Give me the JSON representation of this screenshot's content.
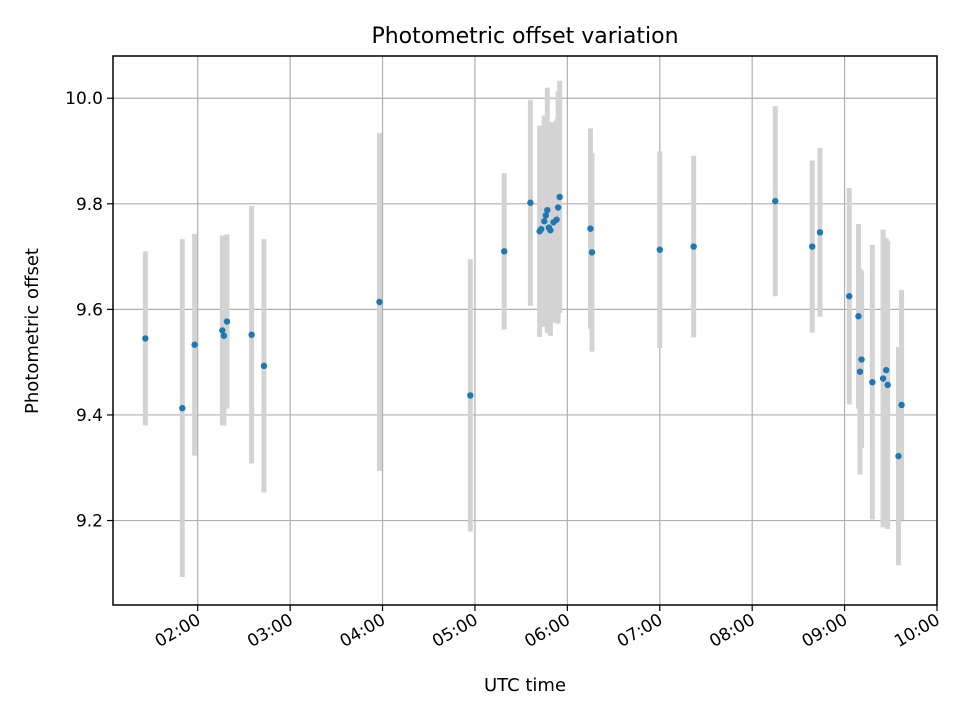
{
  "chart_data": {
    "type": "scatter",
    "title": "Photometric offset variation",
    "xlabel": "UTC time",
    "ylabel": "Photometric offset",
    "x_ticks": [
      "02:00",
      "03:00",
      "04:00",
      "05:00",
      "06:00",
      "07:00",
      "08:00",
      "09:00",
      "10:00"
    ],
    "y_ticks": [
      "9.2",
      "9.4",
      "9.6",
      "9.8",
      "10.0"
    ],
    "xlim": [
      "01:05",
      "10:00"
    ],
    "ylim": [
      9.04,
      10.08
    ],
    "grid": true,
    "colors": {
      "point": "#1f77b4",
      "errorbar": "#d3d3d3",
      "grid": "#b0b0b0"
    },
    "points": [
      {
        "time": "01:26",
        "value": 9.545,
        "err": 0.165
      },
      {
        "time": "01:50",
        "value": 9.413,
        "err": 0.32
      },
      {
        "time": "01:58",
        "value": 9.533,
        "err": 0.21
      },
      {
        "time": "02:16",
        "value": 9.56,
        "err": 0.18
      },
      {
        "time": "02:17",
        "value": 9.55,
        "err": 0.17
      },
      {
        "time": "02:19",
        "value": 9.577,
        "err": 0.165
      },
      {
        "time": "02:35",
        "value": 9.552,
        "err": 0.244
      },
      {
        "time": "02:43",
        "value": 9.493,
        "err": 0.24
      },
      {
        "time": "03:58",
        "value": 9.614,
        "err": 0.32
      },
      {
        "time": "04:57",
        "value": 9.437,
        "err": 0.258
      },
      {
        "time": "05:19",
        "value": 9.71,
        "err": 0.148
      },
      {
        "time": "05:36",
        "value": 9.802,
        "err": 0.195
      },
      {
        "time": "05:42",
        "value": 9.748,
        "err": 0.2
      },
      {
        "time": "05:43",
        "value": 9.752,
        "err": 0.18
      },
      {
        "time": "05:45",
        "value": 9.767,
        "err": 0.2
      },
      {
        "time": "05:46",
        "value": 9.778,
        "err": 0.185
      },
      {
        "time": "05:47",
        "value": 9.788,
        "err": 0.232
      },
      {
        "time": "05:48",
        "value": 9.755,
        "err": 0.2
      },
      {
        "time": "05:49",
        "value": 9.75,
        "err": 0.2
      },
      {
        "time": "05:51",
        "value": 9.765,
        "err": 0.19
      },
      {
        "time": "05:53",
        "value": 9.77,
        "err": 0.19
      },
      {
        "time": "05:54",
        "value": 9.793,
        "err": 0.22
      },
      {
        "time": "05:55",
        "value": 9.813,
        "err": 0.22
      },
      {
        "time": "06:15",
        "value": 9.753,
        "err": 0.19
      },
      {
        "time": "06:16",
        "value": 9.708,
        "err": 0.188
      },
      {
        "time": "07:00",
        "value": 9.713,
        "err": 0.186
      },
      {
        "time": "07:22",
        "value": 9.719,
        "err": 0.172
      },
      {
        "time": "08:15",
        "value": 9.805,
        "err": 0.18
      },
      {
        "time": "08:39",
        "value": 9.719,
        "err": 0.163
      },
      {
        "time": "08:44",
        "value": 9.746,
        "err": 0.16
      },
      {
        "time": "09:03",
        "value": 9.625,
        "err": 0.205
      },
      {
        "time": "09:09",
        "value": 9.587,
        "err": 0.175
      },
      {
        "time": "09:10",
        "value": 9.482,
        "err": 0.195
      },
      {
        "time": "09:11",
        "value": 9.505,
        "err": 0.168
      },
      {
        "time": "09:18",
        "value": 9.462,
        "err": 0.26
      },
      {
        "time": "09:25",
        "value": 9.469,
        "err": 0.282
      },
      {
        "time": "09:27",
        "value": 9.485,
        "err": 0.25
      },
      {
        "time": "09:28",
        "value": 9.457,
        "err": 0.273
      },
      {
        "time": "09:35",
        "value": 9.322,
        "err": 0.207
      },
      {
        "time": "09:37",
        "value": 9.419,
        "err": 0.218
      }
    ]
  }
}
